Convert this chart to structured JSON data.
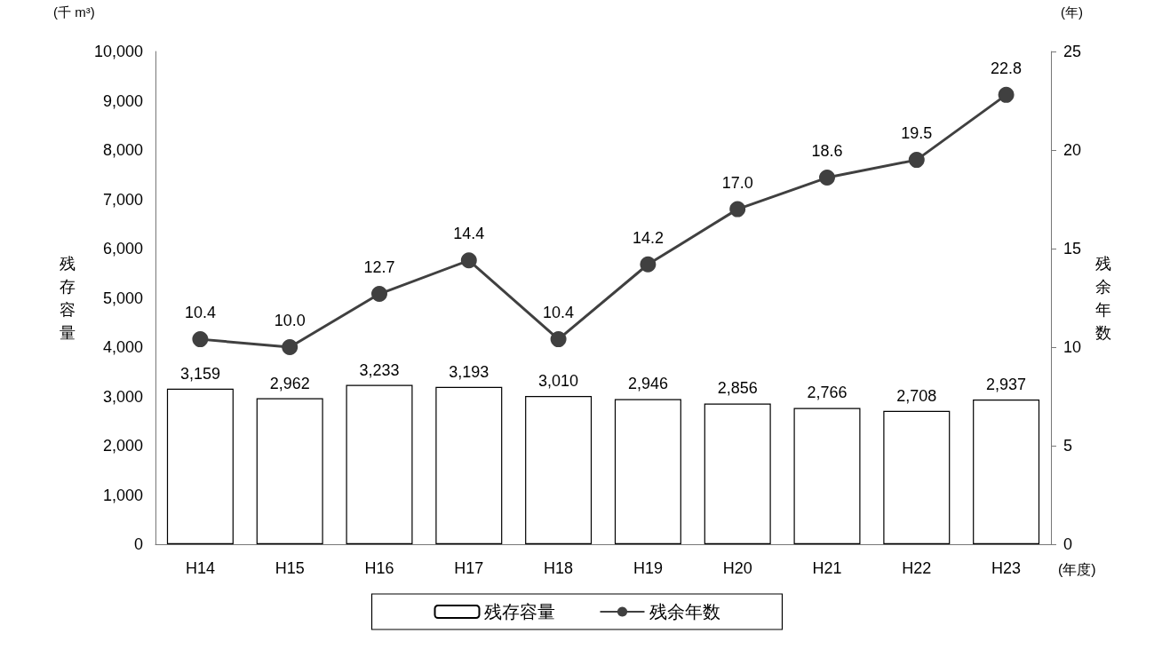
{
  "chart_data": {
    "type": "bar",
    "xlabel": "(年度)",
    "ylabel": "残存容量",
    "y2label": "残余年数",
    "annotations": [
      "(千 m³)",
      "(年)"
    ],
    "categories": [
      "H14",
      "H15",
      "H16",
      "H17",
      "H18",
      "H19",
      "H20",
      "H21",
      "H22",
      "H23"
    ],
    "series": [
      {
        "name": "残存容量",
        "color": "#ffffff",
        "values": [
          3159,
          2962,
          3233,
          3193,
          3010,
          2946,
          2856,
          2766,
          2708,
          2937
        ],
        "value_labels": [
          "3,159",
          "2,962",
          "3,233",
          "3,193",
          "3,010",
          "2,946",
          "2,856",
          "2,766",
          "2,708",
          "2,937"
        ]
      },
      {
        "name": "残余年数",
        "type": "line",
        "axis": "y2",
        "color": "#404040",
        "values": [
          10.4,
          10.0,
          12.7,
          14.4,
          10.4,
          14.2,
          17.0,
          18.6,
          19.5,
          22.8
        ],
        "value_labels": [
          "10.4",
          "10.0",
          "12.7",
          "14.4",
          "10.4",
          "14.2",
          "17.0",
          "18.6",
          "19.5",
          "22.8"
        ]
      }
    ],
    "ylim": [
      0,
      10000
    ],
    "yticks": [
      0,
      {
        "value": 1000,
        "label": "1,000"
      },
      {
        "value": 2000,
        "label": "2,000"
      },
      {
        "value": 3000,
        "label": "3,000"
      },
      {
        "value": 4000,
        "label": "4,000"
      },
      {
        "value": 5000,
        "label": "5,000"
      },
      {
        "value": 6000,
        "label": "6,000"
      },
      {
        "value": 7000,
        "label": "7,000"
      },
      {
        "value": 8000,
        "label": "8,000"
      },
      {
        "value": 9000,
        "label": "9,000"
      },
      {
        "value": 10000,
        "label": "10,000"
      }
    ],
    "y2lim": [
      0,
      25
    ],
    "y2ticks": [
      0,
      5,
      10,
      15,
      20,
      25
    ],
    "grid": false,
    "legend": "bottom",
    "marker": "circle",
    "line_style": "solid"
  }
}
